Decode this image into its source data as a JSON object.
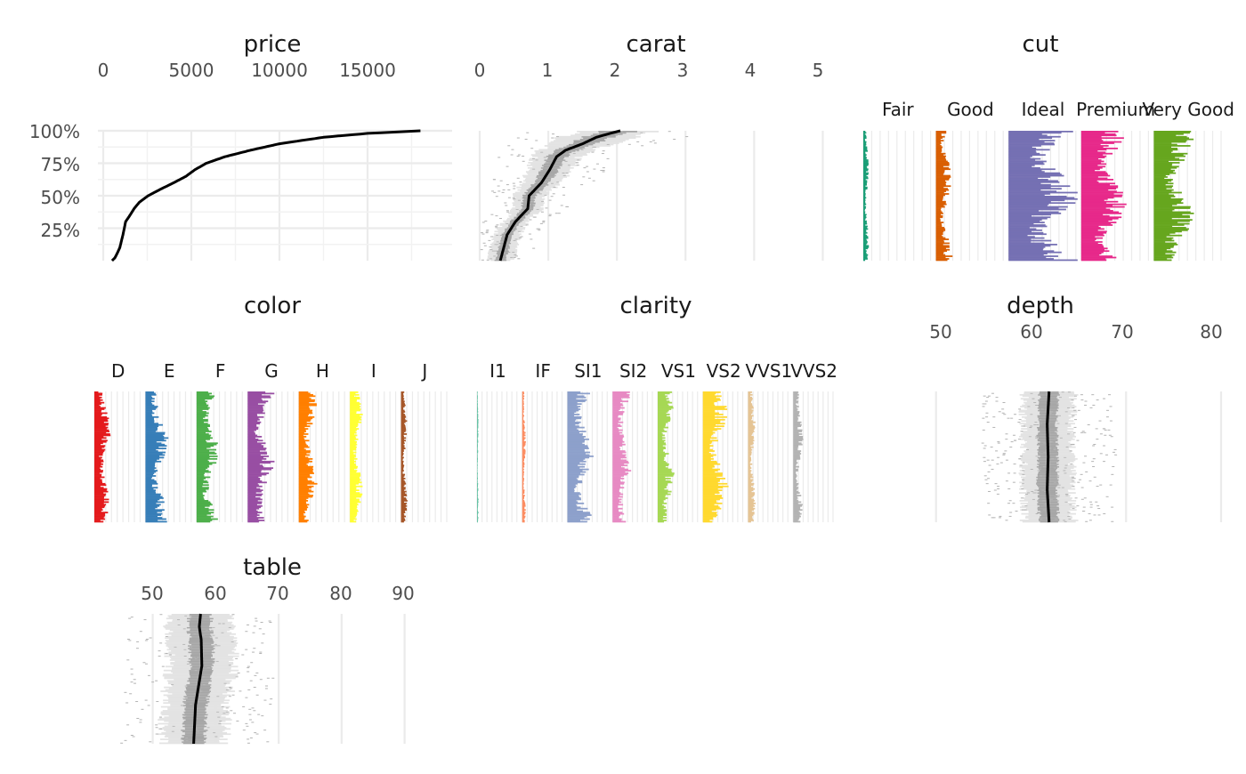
{
  "chart_data": {
    "type": "tableplot",
    "y_axis_labels": [
      "100%",
      "75%",
      "50%",
      "25%"
    ],
    "panels": [
      {
        "name": "price",
        "title": "price",
        "kind": "numeric",
        "ticks": [
          "0",
          "5000",
          "10000",
          "15000"
        ],
        "tick_values": [
          0,
          5000,
          10000,
          15000
        ],
        "xlim": [
          0,
          19800
        ],
        "mean_curve": [
          [
            0.0,
            500
          ],
          [
            0.02,
            650
          ],
          [
            0.05,
            770
          ],
          [
            0.1,
            940
          ],
          [
            0.2,
            1120
          ],
          [
            0.3,
            1270
          ],
          [
            0.34,
            1470
          ],
          [
            0.4,
            1750
          ],
          [
            0.45,
            2050
          ],
          [
            0.5,
            2550
          ],
          [
            0.55,
            3250
          ],
          [
            0.6,
            4000
          ],
          [
            0.65,
            4700
          ],
          [
            0.7,
            5200
          ],
          [
            0.75,
            5850
          ],
          [
            0.8,
            6900
          ],
          [
            0.85,
            8350
          ],
          [
            0.9,
            10000
          ],
          [
            0.95,
            12500
          ],
          [
            0.98,
            15000
          ],
          [
            1.0,
            18000
          ]
        ]
      },
      {
        "name": "carat",
        "title": "carat",
        "kind": "numeric",
        "ticks": [
          "0",
          "1",
          "2",
          "3",
          "4",
          "5"
        ],
        "tick_values": [
          0,
          1,
          2,
          3,
          4,
          5
        ],
        "xlim": [
          0,
          5.15
        ],
        "mean_curve": [
          [
            0.0,
            0.3
          ],
          [
            0.1,
            0.35
          ],
          [
            0.2,
            0.4
          ],
          [
            0.3,
            0.52
          ],
          [
            0.4,
            0.7
          ],
          [
            0.5,
            0.72
          ],
          [
            0.6,
            0.9
          ],
          [
            0.7,
            1.02
          ],
          [
            0.8,
            1.12
          ],
          [
            0.85,
            1.25
          ],
          [
            0.9,
            1.5
          ],
          [
            0.95,
            1.7
          ],
          [
            0.98,
            1.9
          ],
          [
            1.0,
            2.05
          ]
        ]
      },
      {
        "name": "cut",
        "title": "cut",
        "kind": "categorical",
        "categories": [
          "Fair",
          "Good",
          "Ideal",
          "Premium",
          "Very Good"
        ],
        "category_colors": [
          "#1B9E77",
          "#D95F02",
          "#7570B3",
          "#E7298A",
          "#66A61E"
        ],
        "mean_shares": [
          0.03,
          0.09,
          0.4,
          0.26,
          0.22
        ]
      },
      {
        "name": "color",
        "title": "color",
        "kind": "categorical",
        "categories": [
          "D",
          "E",
          "F",
          "G",
          "H",
          "I",
          "J"
        ],
        "category_colors": [
          "#E41A1C",
          "#377EB8",
          "#4DAF4A",
          "#984EA3",
          "#FF7F00",
          "#FFFF33",
          "#A65628"
        ],
        "mean_shares": [
          0.13,
          0.18,
          0.18,
          0.21,
          0.15,
          0.1,
          0.05
        ]
      },
      {
        "name": "clarity",
        "title": "clarity",
        "kind": "categorical",
        "categories": [
          "I1",
          "IF",
          "SI1",
          "SI2",
          "VS1",
          "VS2",
          "VVS1",
          "VVS2"
        ],
        "category_colors": [
          "#66C2A5",
          "#FC8D62",
          "#8DA0CB",
          "#E78AC3",
          "#A6D854",
          "#FFD92F",
          "#E5C494",
          "#B3B3B3"
        ],
        "mean_shares": [
          0.014,
          0.033,
          0.24,
          0.17,
          0.15,
          0.23,
          0.07,
          0.09
        ]
      },
      {
        "name": "depth",
        "title": "depth",
        "kind": "numeric",
        "ticks": [
          "50",
          "60",
          "70",
          "80"
        ],
        "tick_values": [
          50,
          60,
          70,
          80
        ],
        "xlim": [
          43,
          80
        ],
        "mean_curve": [
          [
            0.0,
            61.9
          ],
          [
            0.25,
            61.7
          ],
          [
            0.5,
            61.8
          ],
          [
            0.75,
            61.7
          ],
          [
            1.0,
            61.9
          ]
        ]
      },
      {
        "name": "table",
        "title": "table",
        "kind": "numeric",
        "ticks": [
          "50",
          "60",
          "70",
          "80",
          "90"
        ],
        "tick_values": [
          50,
          60,
          70,
          80,
          90
        ],
        "xlim": [
          42,
          95
        ],
        "mean_curve": [
          [
            0.0,
            56.5
          ],
          [
            0.3,
            56.8
          ],
          [
            0.45,
            57.3
          ],
          [
            0.6,
            57.8
          ],
          [
            0.8,
            57.7
          ],
          [
            0.9,
            57.4
          ],
          [
            1.0,
            57.6
          ]
        ]
      }
    ]
  }
}
